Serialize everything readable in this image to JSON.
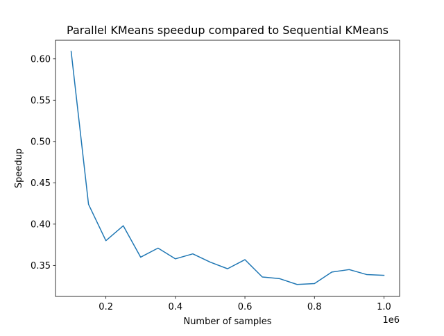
{
  "chart_data": {
    "type": "line",
    "title": "Parallel KMeans speedup compared to Sequential KMeans",
    "xlabel": "Number of samples",
    "ylabel": "Speedup",
    "x_offset_label": "1e6",
    "xlim": [
      0.055,
      1.045
    ],
    "ylim": [
      0.3125,
      0.6225
    ],
    "x_ticks": [
      {
        "value": 0.2,
        "label": "0.2"
      },
      {
        "value": 0.4,
        "label": "0.4"
      },
      {
        "value": 0.6,
        "label": "0.6"
      },
      {
        "value": 0.8,
        "label": "0.8"
      },
      {
        "value": 1.0,
        "label": "1.0"
      }
    ],
    "y_ticks": [
      {
        "value": 0.35,
        "label": "0.35"
      },
      {
        "value": 0.4,
        "label": "0.40"
      },
      {
        "value": 0.45,
        "label": "0.45"
      },
      {
        "value": 0.5,
        "label": "0.50"
      },
      {
        "value": 0.55,
        "label": "0.55"
      },
      {
        "value": 0.6,
        "label": "0.60"
      }
    ],
    "grid": false,
    "legend": "none",
    "series": [
      {
        "color": "#1f77b4",
        "x": [
          0.1,
          0.15,
          0.2,
          0.25,
          0.3,
          0.35,
          0.4,
          0.45,
          0.5,
          0.55,
          0.6,
          0.65,
          0.7,
          0.75,
          0.8,
          0.85,
          0.9,
          0.95,
          1.0
        ],
        "y": [
          0.609,
          0.424,
          0.38,
          0.398,
          0.36,
          0.371,
          0.358,
          0.364,
          0.354,
          0.346,
          0.357,
          0.336,
          0.334,
          0.327,
          0.328,
          0.342,
          0.345,
          0.339,
          0.338
        ]
      }
    ]
  }
}
